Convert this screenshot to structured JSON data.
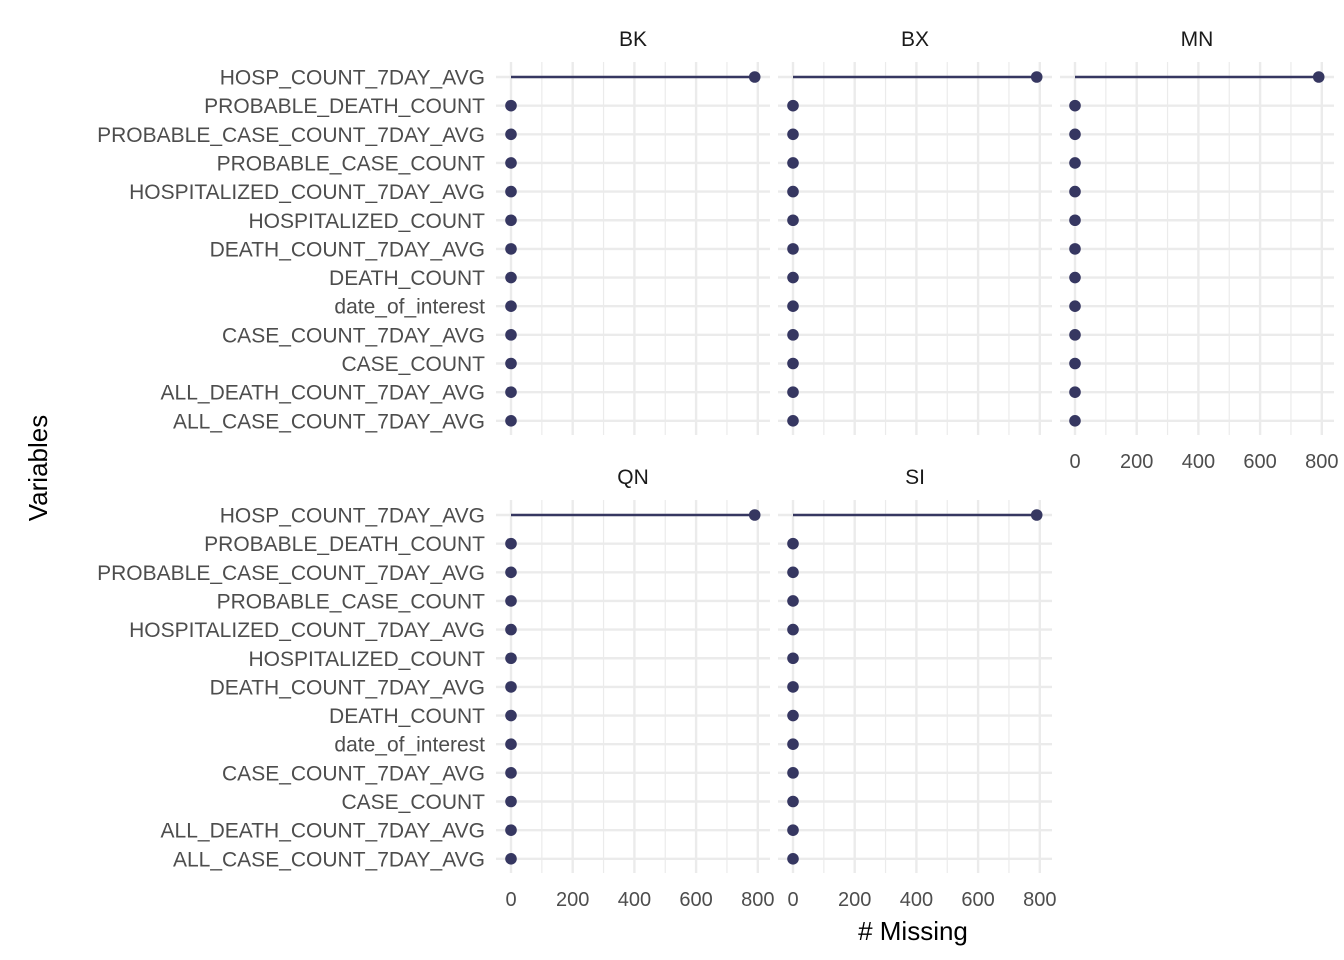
{
  "chart_data": {
    "type": "lollipop",
    "xlabel": "# Missing",
    "ylabel": "Variables",
    "xlim": [
      0,
      800
    ],
    "x_ticks": [
      0,
      200,
      400,
      600,
      800
    ],
    "variables": [
      "HOSP_COUNT_7DAY_AVG",
      "PROBABLE_DEATH_COUNT",
      "PROBABLE_CASE_COUNT_7DAY_AVG",
      "PROBABLE_CASE_COUNT",
      "HOSPITALIZED_COUNT_7DAY_AVG",
      "HOSPITALIZED_COUNT",
      "DEATH_COUNT_7DAY_AVG",
      "DEATH_COUNT",
      "date_of_interest",
      "CASE_COUNT_7DAY_AVG",
      "CASE_COUNT",
      "ALL_DEATH_COUNT_7DAY_AVG",
      "ALL_CASE_COUNT_7DAY_AVG"
    ],
    "panels": [
      {
        "name": "BK",
        "values": [
          790,
          0,
          0,
          0,
          0,
          0,
          0,
          0,
          0,
          0,
          0,
          0,
          0
        ]
      },
      {
        "name": "BX",
        "values": [
          790,
          0,
          0,
          0,
          0,
          0,
          0,
          0,
          0,
          0,
          0,
          0,
          0
        ]
      },
      {
        "name": "MN",
        "values": [
          790,
          0,
          0,
          0,
          0,
          0,
          0,
          0,
          0,
          0,
          0,
          0,
          0
        ]
      },
      {
        "name": "QN",
        "values": [
          790,
          0,
          0,
          0,
          0,
          0,
          0,
          0,
          0,
          0,
          0,
          0,
          0
        ]
      },
      {
        "name": "SI",
        "values": [
          790,
          0,
          0,
          0,
          0,
          0,
          0,
          0,
          0,
          0,
          0,
          0,
          0
        ]
      }
    ],
    "colors": {
      "point": "#363761",
      "grid": "#ebebeb"
    },
    "grid": true,
    "legend": "none"
  }
}
